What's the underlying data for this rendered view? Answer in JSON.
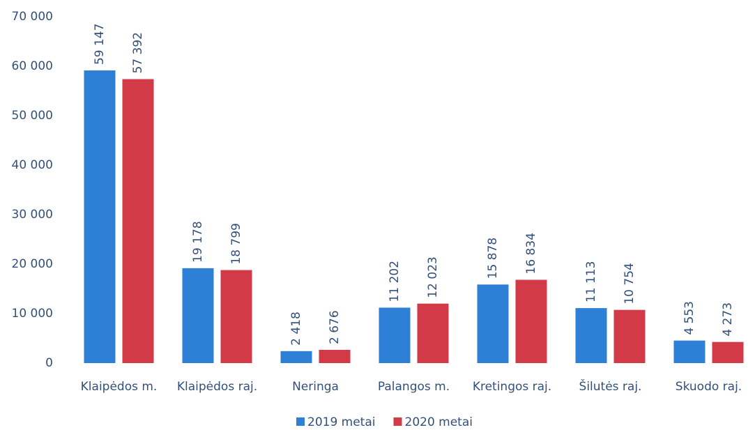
{
  "chart_data": {
    "type": "bar",
    "categories": [
      "Klaipėdos m.",
      "Klaipėdos raj.",
      "Neringa",
      "Palangos m.",
      "Kretingos raj.",
      "Šilutės raj.",
      "Skuodo raj."
    ],
    "series": [
      {
        "name": "2019 metai",
        "color": "#2e7fd6",
        "values": [
          59147,
          19178,
          2418,
          11202,
          15878,
          11113,
          4553
        ],
        "value_labels": [
          "59 147",
          "19 178",
          "2 418",
          "11 202",
          "15 878",
          "11 113",
          "4 553"
        ]
      },
      {
        "name": "2020 metai",
        "color": "#d23a48",
        "values": [
          57392,
          18799,
          2676,
          12023,
          16834,
          10754,
          4273
        ],
        "value_labels": [
          "57 392",
          "18 799",
          "2 676",
          "12 023",
          "16 834",
          "10 754",
          "4 273"
        ]
      }
    ],
    "ylim": [
      0,
      70000
    ],
    "yticks": [
      0,
      {
        "value": 10000,
        "label": "10 000"
      },
      {
        "value": 20000,
        "label": "20 000"
      },
      {
        "value": 30000,
        "label": "30 000"
      },
      {
        "value": 40000,
        "label": "40 000"
      },
      {
        "value": 50000,
        "label": "50 000"
      },
      {
        "value": 60000,
        "label": "60 000"
      },
      {
        "value": 70000,
        "label": "70 000"
      }
    ],
    "grid": false,
    "legend": "bottom"
  }
}
